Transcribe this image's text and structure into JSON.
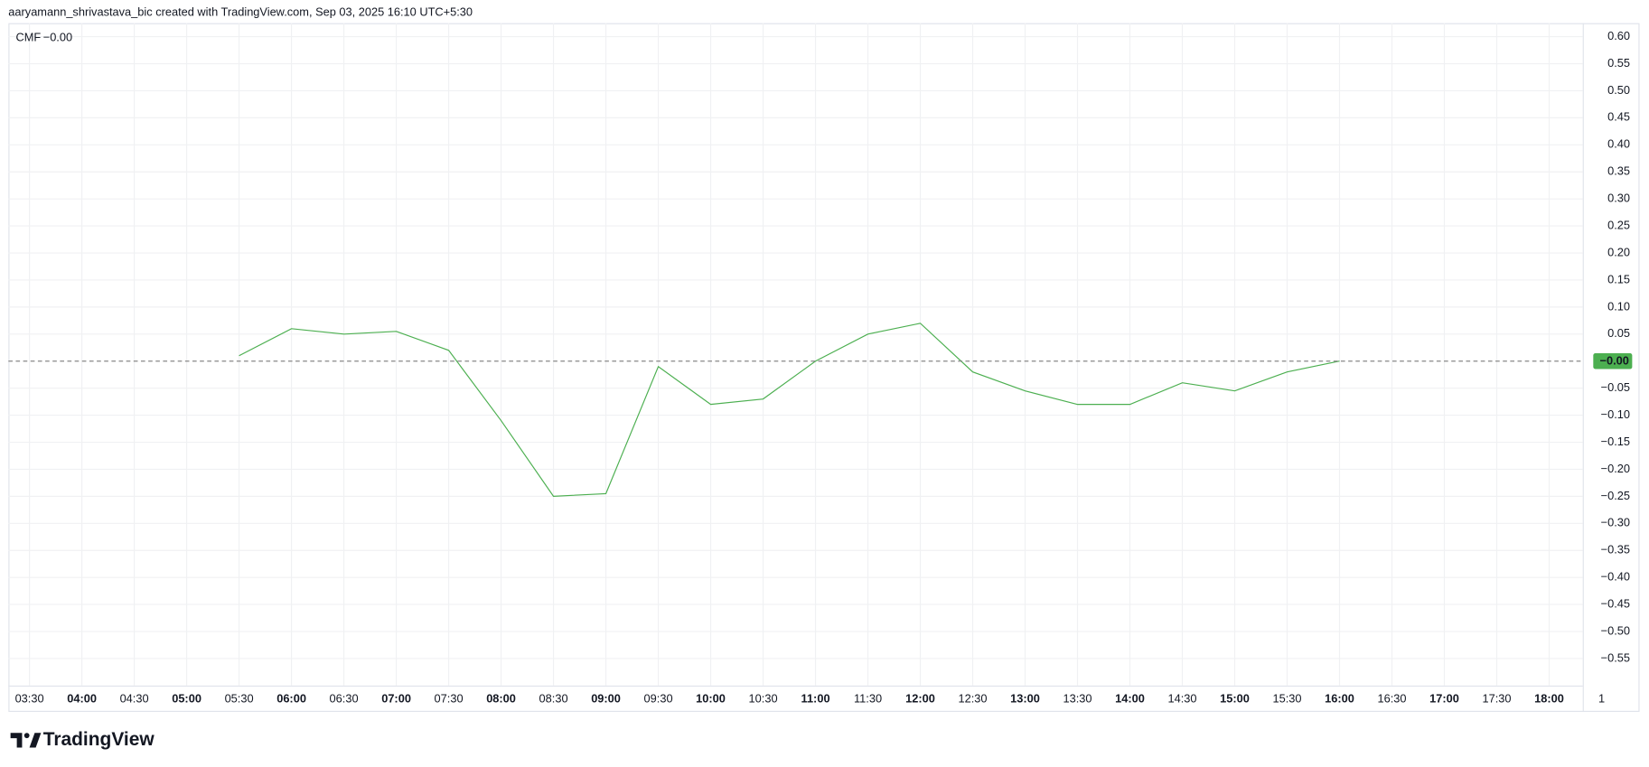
{
  "header": "aaryamann_shrivastava_bic created with TradingView.com, Sep 03, 2025 16:10 UTC+5:30",
  "brand": "TradingView",
  "chart_data": {
    "type": "line",
    "categories": [
      "03:30",
      "04:00",
      "04:30",
      "05:00",
      "05:30",
      "06:00",
      "06:30",
      "07:00",
      "07:30",
      "08:00",
      "08:30",
      "09:00",
      "09:30",
      "10:00",
      "10:30",
      "11:00",
      "11:30",
      "12:00",
      "12:30",
      "13:00",
      "13:30",
      "14:00",
      "14:30",
      "15:00",
      "15:30",
      "16:00",
      "16:30",
      "17:00",
      "17:30",
      "18:00",
      "1"
    ],
    "series": [
      {
        "name": "CMF",
        "color": "#4caf50",
        "values": [
          null,
          null,
          null,
          null,
          0.01,
          0.06,
          0.05,
          0.055,
          0.02,
          -0.11,
          -0.25,
          -0.245,
          -0.01,
          -0.08,
          -0.07,
          0.0,
          0.05,
          0.07,
          -0.02,
          -0.055,
          -0.08,
          -0.08,
          -0.04,
          -0.055,
          -0.02,
          0.0,
          null,
          null,
          null,
          null,
          null
        ],
        "value_labels": [
          null,
          null,
          null,
          null,
          null,
          null,
          null,
          null,
          null,
          null,
          null,
          null,
          null,
          null,
          null,
          null,
          null,
          null,
          null,
          null,
          null,
          null,
          null,
          null,
          null,
          "−0.00",
          null,
          null,
          null,
          null,
          null
        ]
      }
    ],
    "ylim": [
      -0.6,
      0.625
    ],
    "yticks": [
      {
        "value": 0.6,
        "label": "0.60"
      },
      {
        "value": 0.55,
        "label": "0.55"
      },
      {
        "value": 0.5,
        "label": "0.50"
      },
      {
        "value": 0.45,
        "label": "0.45"
      },
      {
        "value": 0.4,
        "label": "0.40"
      },
      {
        "value": 0.35,
        "label": "0.35"
      },
      {
        "value": 0.3,
        "label": "0.30"
      },
      {
        "value": 0.25,
        "label": "0.25"
      },
      {
        "value": 0.2,
        "label": "0.20"
      },
      {
        "value": 0.15,
        "label": "0.15"
      },
      {
        "value": 0.1,
        "label": "0.10"
      },
      {
        "value": 0.05,
        "label": "0.05"
      },
      {
        "value": -0.05,
        "label": "−0.05"
      },
      {
        "value": -0.1,
        "label": "−0.10"
      },
      {
        "value": -0.15,
        "label": "−0.15"
      },
      {
        "value": -0.2,
        "label": "−0.20"
      },
      {
        "value": -0.25,
        "label": "−0.25"
      },
      {
        "value": -0.3,
        "label": "−0.30"
      },
      {
        "value": -0.35,
        "label": "−0.35"
      },
      {
        "value": -0.4,
        "label": "−0.40"
      },
      {
        "value": -0.45,
        "label": "−0.45"
      },
      {
        "value": -0.5,
        "label": "−0.50"
      },
      {
        "value": -0.55,
        "label": "−0.55"
      }
    ],
    "grid": true
  }
}
